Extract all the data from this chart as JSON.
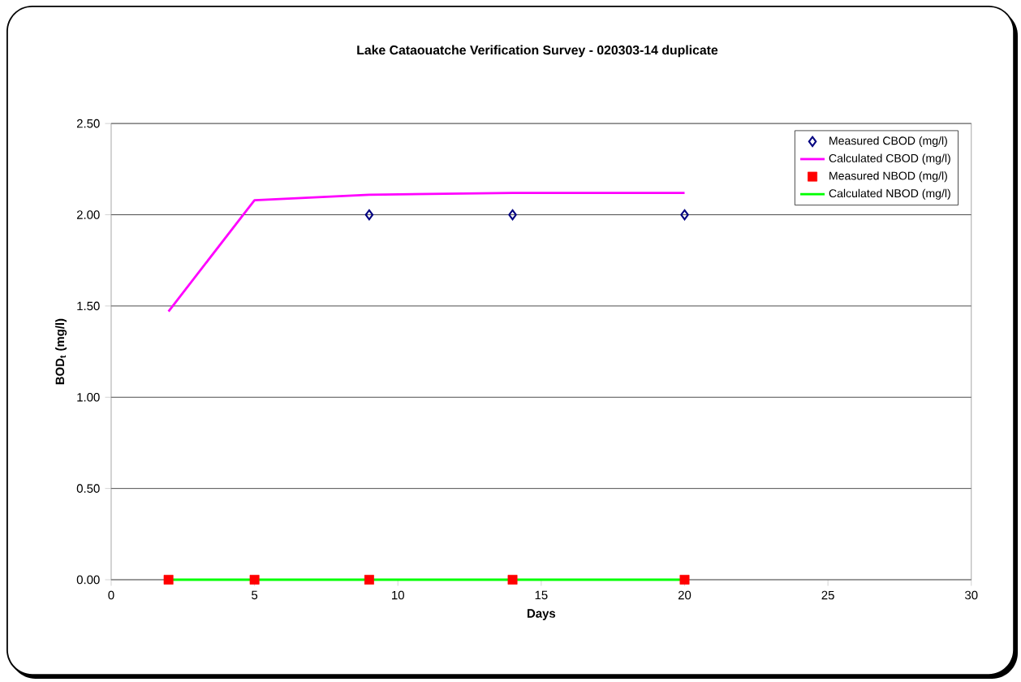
{
  "chart_data": {
    "type": "line",
    "title": "Lake Cataouatche Verification Survey - 020303-14 duplicate",
    "xlabel": "Days",
    "ylabel": "BOD$_{t}$ (mg/l)",
    "series": [
      {
        "name": "Measured CBOD (mg/l)",
        "type": "scatter",
        "marker": "diamond",
        "color": "#000080",
        "x": [
          9,
          14,
          20
        ],
        "values": [
          2.0,
          2.0,
          2.0
        ]
      },
      {
        "name": "Calculated CBOD (mg/l)",
        "type": "line",
        "marker": "none",
        "color": "#ff00ff",
        "x": [
          2,
          5,
          9,
          14,
          20
        ],
        "values": [
          1.47,
          2.08,
          2.11,
          2.12,
          2.12
        ]
      },
      {
        "name": "Measured NBOD (mg/l)",
        "type": "scatter",
        "marker": "square",
        "color": "#ff0000",
        "x": [
          2,
          5,
          9,
          14,
          20
        ],
        "values": [
          0,
          0,
          0,
          0,
          0
        ]
      },
      {
        "name": "Calculated NBOD (mg/l)",
        "type": "line",
        "marker": "none",
        "color": "#00ff00",
        "x": [
          2,
          5,
          9,
          14,
          20
        ],
        "values": [
          0,
          0,
          0,
          0,
          0
        ]
      }
    ],
    "xlim": [
      0,
      30
    ],
    "xticks": [
      0,
      5,
      10,
      15,
      20,
      25,
      30
    ],
    "ylim": [
      0,
      2.5
    ],
    "yticks": [
      {
        "value": 0,
        "label": "0.00"
      },
      {
        "value": 0.5,
        "label": "0.50"
      },
      {
        "value": 1,
        "label": "1.00"
      },
      {
        "value": 1.5,
        "label": "1.50"
      },
      {
        "value": 2,
        "label": "2.00"
      },
      {
        "value": 2.5,
        "label": "2.50"
      }
    ],
    "grid": "y",
    "legend": "top right"
  }
}
